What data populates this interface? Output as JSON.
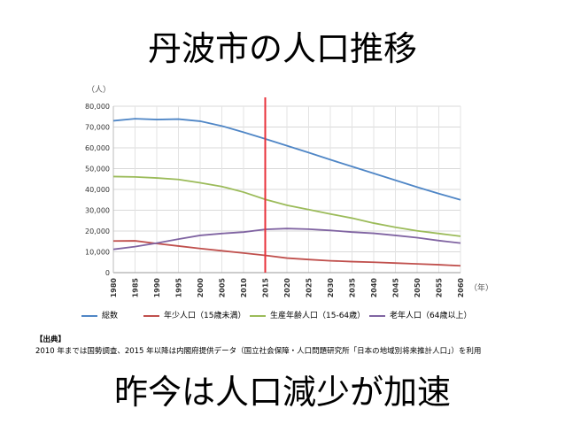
{
  "slide": {
    "title": "丹波市の人口推移",
    "footer": "昨今は人口減少が加速"
  },
  "source": {
    "heading": "【出典】",
    "text": "2010 年までは国勢調査、2015 年以降は内閣府提供データ（国立社会保障・人口問題研究所「日本の地域別将来推計人口」）を利用"
  },
  "chart_data": {
    "type": "line",
    "title": "",
    "ylabel": "（人）",
    "xlabel": "（年）",
    "x": [
      1980,
      1985,
      1990,
      1995,
      2000,
      2005,
      2010,
      2015,
      2020,
      2025,
      2030,
      2035,
      2040,
      2045,
      2050,
      2055,
      2060
    ],
    "ylim": [
      0,
      80000
    ],
    "yticks": [
      0,
      10000,
      20000,
      30000,
      40000,
      50000,
      60000,
      70000,
      80000
    ],
    "ytick_labels": [
      "0",
      "10,000",
      "20,000",
      "30,000",
      "40,000",
      "50,000",
      "60,000",
      "70,000",
      "80,000"
    ],
    "grid": true,
    "legend_position": "bottom",
    "marker_line": {
      "x": 2015,
      "color": "#e8303a"
    },
    "series": [
      {
        "name": "総数",
        "color": "#4f86c6",
        "values": [
          73000,
          74000,
          73600,
          73800,
          72800,
          70500,
          67500,
          64300,
          61000,
          57700,
          54300,
          51000,
          47700,
          44400,
          41100,
          38000,
          35000
        ]
      },
      {
        "name": "年少人口（15歳未満）",
        "color": "#c0504d",
        "values": [
          15200,
          15300,
          14000,
          12800,
          11600,
          10500,
          9400,
          8300,
          7000,
          6300,
          5700,
          5300,
          5000,
          4600,
          4200,
          3800,
          3300
        ]
      },
      {
        "name": "生産年齢人口（15-64歳）",
        "color": "#9bbb59",
        "values": [
          46200,
          46000,
          45500,
          44800,
          43200,
          41400,
          38700,
          35200,
          32400,
          30300,
          28200,
          26200,
          23800,
          21800,
          20100,
          18800,
          17500
        ]
      },
      {
        "name": "老年人口（64歳以上）",
        "color": "#8064a2",
        "values": [
          11200,
          12500,
          14200,
          16100,
          17900,
          18800,
          19500,
          20800,
          21200,
          20900,
          20300,
          19500,
          18900,
          17900,
          16800,
          15400,
          14200
        ]
      }
    ]
  }
}
